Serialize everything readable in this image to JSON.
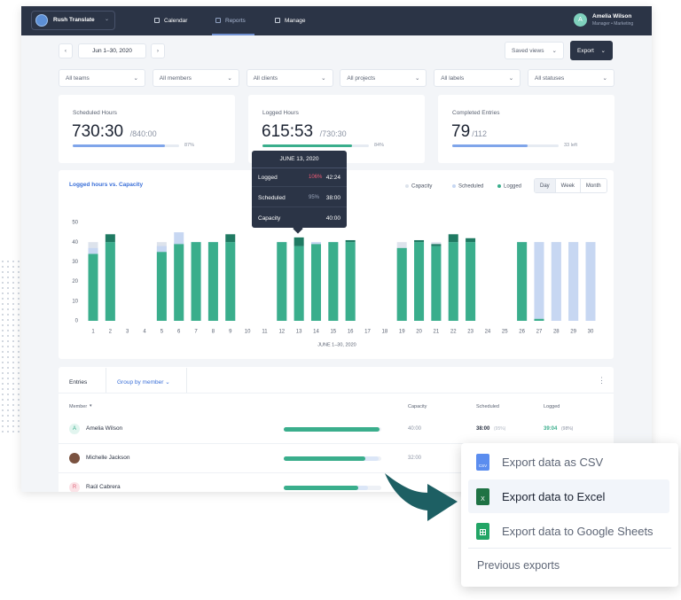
{
  "nav": {
    "brand": "Rush Translate",
    "items": [
      "Calendar",
      "Reports",
      "Manage"
    ],
    "active_index": 1,
    "user": {
      "initial": "A",
      "name": "Amelia Wilson",
      "role": "Manager • Marketing"
    }
  },
  "toolbar": {
    "date_range": "Jun 1–30, 2020",
    "saved_views": "Saved views",
    "export": "Export"
  },
  "filters": [
    "All teams",
    "All members",
    "All clients",
    "All projects",
    "All labels",
    "All statuses"
  ],
  "stats": [
    {
      "label": "Scheduled Hours",
      "value": "730:30",
      "total": "/840:00",
      "progress": 87,
      "progress_label": "87%",
      "color": "#7fa5ea"
    },
    {
      "label": "Logged Hours",
      "value": "615:53",
      "total": "/730:30",
      "progress": 84,
      "progress_label": "84%",
      "color": "#3aae8c"
    },
    {
      "label": "Completed Entries",
      "value": "79",
      "total": "/112",
      "progress": 71,
      "note": "33 left",
      "color": "#7fa5ea"
    }
  ],
  "chart": {
    "type": "bar",
    "title": "Logged hours vs. Capacity",
    "x_label": "JUNE 1–30, 2020",
    "categories": [
      "1",
      "2",
      "3",
      "4",
      "5",
      "6",
      "7",
      "8",
      "9",
      "10",
      "11",
      "12",
      "13",
      "14",
      "15",
      "16",
      "17",
      "18",
      "19",
      "20",
      "21",
      "22",
      "23",
      "24",
      "25",
      "26",
      "27",
      "28",
      "29",
      "30"
    ],
    "series": [
      {
        "name": "Capacity",
        "color": "#dde3ec",
        "values": [
          40,
          40,
          null,
          null,
          40,
          40,
          40,
          40,
          40,
          null,
          null,
          40,
          40,
          40,
          40,
          40,
          null,
          null,
          40,
          40,
          40,
          40,
          40,
          null,
          null,
          40,
          40,
          40,
          40,
          40
        ]
      },
      {
        "name": "Scheduled",
        "color": "#c7d7f2",
        "values": [
          37,
          40,
          null,
          null,
          38,
          45,
          40,
          40,
          40,
          null,
          null,
          40,
          38,
          40,
          40,
          40,
          null,
          null,
          37,
          40,
          38,
          40,
          40,
          null,
          null,
          40,
          40,
          40,
          40,
          40
        ]
      },
      {
        "name": "Logged",
        "color": "#3aae8c",
        "values": [
          34,
          44,
          null,
          null,
          35,
          39,
          40,
          40,
          44,
          null,
          null,
          40,
          42.4,
          39,
          40,
          41,
          null,
          null,
          37,
          41,
          39,
          44,
          42,
          null,
          null,
          40,
          1,
          null,
          null,
          null
        ]
      }
    ],
    "overflow_color": "#1f7a62",
    "ylim": [
      0,
      50
    ],
    "yticks": [
      0,
      10,
      20,
      30,
      40,
      50
    ],
    "toggle": [
      "Day",
      "Week",
      "Month"
    ],
    "toggle_active": 0
  },
  "tooltip": {
    "date": "JUNE 13, 2020",
    "rows": [
      {
        "label": "Logged",
        "percent": "106%",
        "value": "42:24"
      },
      {
        "label": "Scheduled",
        "percent": "95%",
        "value": "38:00"
      },
      {
        "label": "Capacity",
        "value": "40:00"
      }
    ]
  },
  "table": {
    "title": "Entries",
    "group_by": "Group by member",
    "columns": [
      "Member",
      "Capacity",
      "Scheduled",
      "Logged"
    ],
    "rows": [
      {
        "initial": "A",
        "name": "Amelia Wilson",
        "progress": 98,
        "scheduled_share": 95,
        "capacity": "40:00",
        "scheduled": "38:00",
        "scheduled_pct": "(95%)",
        "logged": "39:04",
        "logged_pct": "(98%)"
      },
      {
        "name": "Michelle Jackson",
        "progress": 84,
        "scheduled_share": 97,
        "capacity": "32:00"
      },
      {
        "initial": "R",
        "name": "Raúl Cabrera",
        "progress": 76,
        "scheduled_share": 86
      }
    ]
  },
  "export_menu": {
    "items": [
      {
        "icon": "CSV",
        "label": "Export data as CSV",
        "color": "#5b8def"
      },
      {
        "icon": "X",
        "label": "Export data to Excel",
        "color": "#1f7244",
        "highlighted": true
      },
      {
        "label": "Export data to Google Sheets",
        "color": "#23a566"
      }
    ],
    "footer": "Previous exports"
  }
}
